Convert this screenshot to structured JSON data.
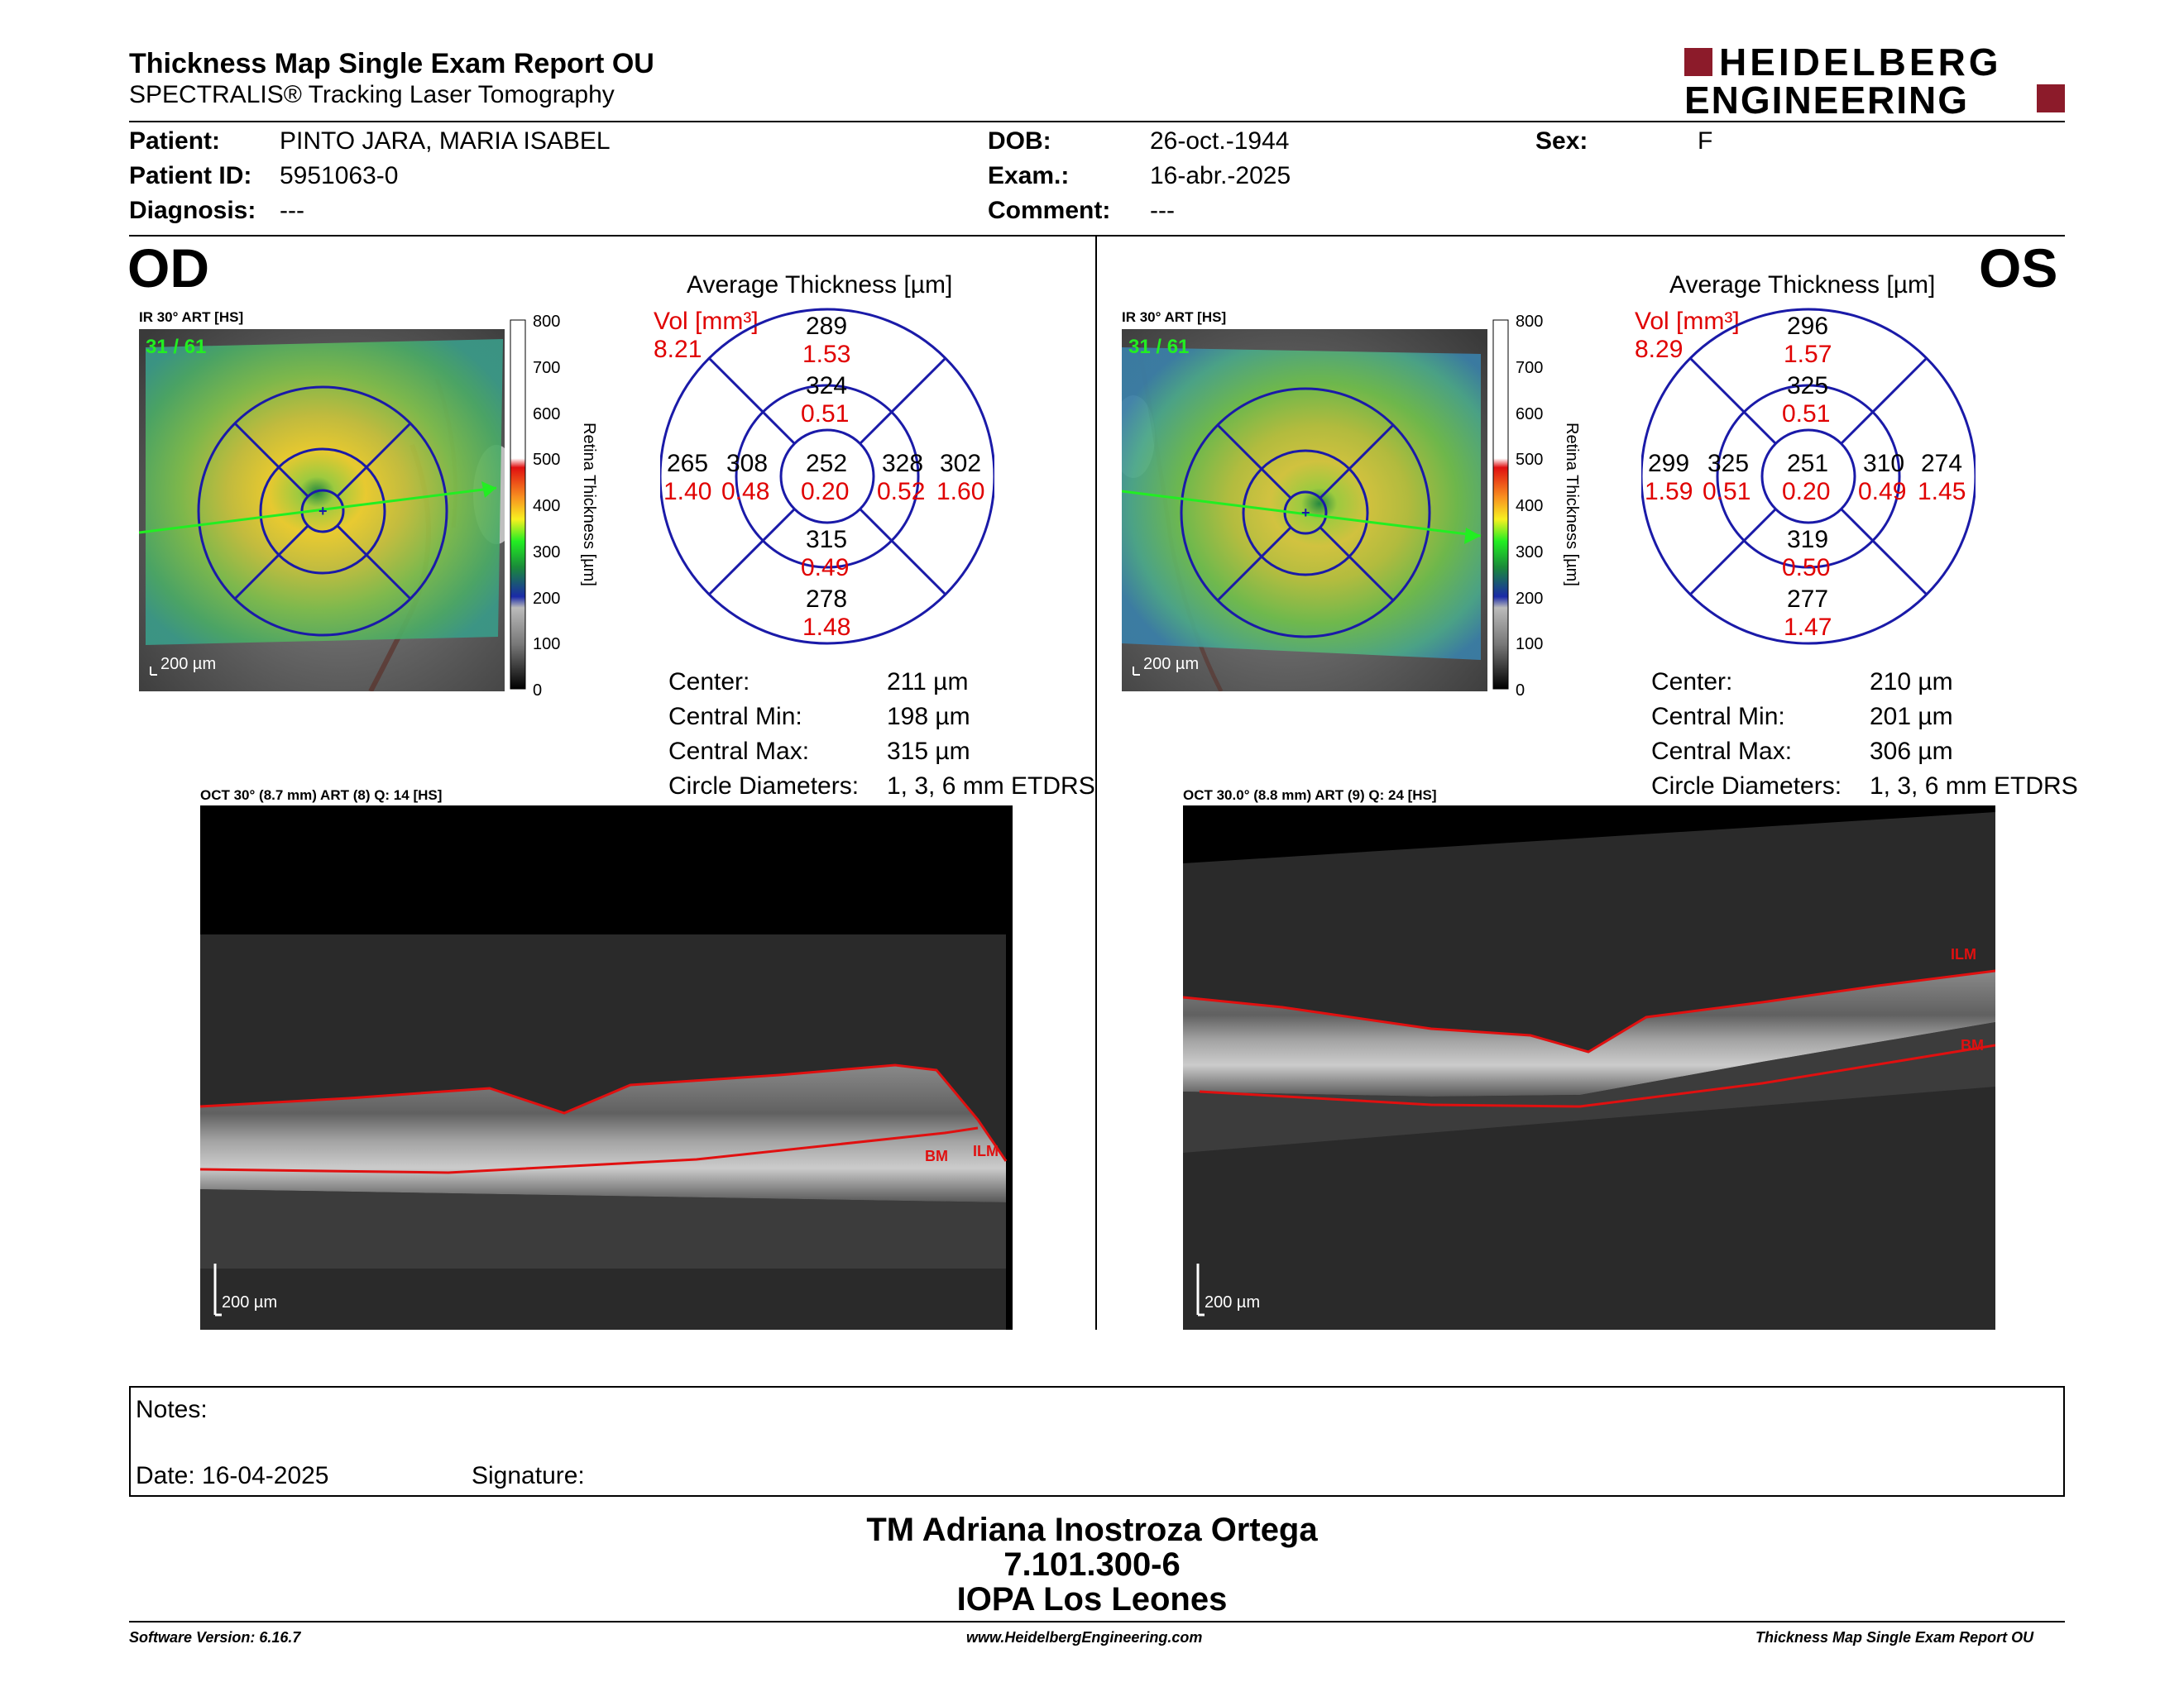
{
  "header": {
    "title": "Thickness Map Single Exam Report OU",
    "subtitle": "SPECTRALIS® Tracking Laser Tomography",
    "logo_line1": "HEIDELBERG",
    "logo_line2": "ENGINEERING"
  },
  "patient": {
    "patient_label": "Patient:",
    "patient_value": "PINTO JARA, MARIA ISABEL",
    "id_label": "Patient ID:",
    "id_value": "5951063-0",
    "diagnosis_label": "Diagnosis:",
    "diagnosis_value": "---",
    "dob_label": "DOB:",
    "dob_value": "26-oct.-1944",
    "exam_label": "Exam.:",
    "exam_value": "16-abr.-2025",
    "comment_label": "Comment:",
    "comment_value": "---",
    "sex_label": "Sex:",
    "sex_value": "F"
  },
  "colors": {
    "accent_red": "#8c1b2a",
    "grid_blue": "#1a1aa8",
    "value_red": "#e00000",
    "seg_red": "#e01010",
    "scan_green": "#22ee22"
  },
  "colorbar": {
    "ticks": [
      "800",
      "700",
      "600",
      "500",
      "400",
      "300",
      "200",
      "100",
      "0"
    ],
    "axis_label": "Retina Thickness [µm]"
  },
  "od": {
    "eye_label": "OD",
    "ir_label": "IR 30° ART [HS]",
    "frame": "31 / 61",
    "scale": "200 µm",
    "avg_title": "Average Thickness [µm]",
    "vol_label": "Vol [mm³]",
    "vol_value": "8.21",
    "sectors": {
      "outer_sup": "289",
      "outer_sup_vol": "1.53",
      "inner_sup": "324",
      "inner_sup_vol": "0.51",
      "outer_left": "265",
      "outer_left_vol": "1.40",
      "inner_left": "308",
      "inner_left_vol": "0.48",
      "center": "252",
      "center_vol": "0.20",
      "inner_right": "328",
      "inner_right_vol": "0.52",
      "outer_right": "302",
      "outer_right_vol": "1.60",
      "inner_inf": "315",
      "inner_inf_vol": "0.49",
      "outer_inf": "278",
      "outer_inf_vol": "1.48"
    },
    "stats": {
      "center_label": "Center:",
      "center_value": "211 µm",
      "min_label": "Central Min:",
      "min_value": "198 µm",
      "max_label": "Central Max:",
      "max_value": "315 µm",
      "diam_label": "Circle Diameters:",
      "diam_value": "1, 3, 6 mm ETDRS"
    },
    "oct_label": "OCT 30° (8.7 mm) ART (8) Q: 14 [HS]",
    "oct_scale": "200 µm",
    "ilm": "ILM",
    "bm": "BM"
  },
  "os": {
    "eye_label": "OS",
    "ir_label": "IR 30° ART [HS]",
    "frame": "31 / 61",
    "scale": "200 µm",
    "avg_title": "Average Thickness [µm]",
    "vol_label": "Vol [mm³]",
    "vol_value": "8.29",
    "sectors": {
      "outer_sup": "296",
      "outer_sup_vol": "1.57",
      "inner_sup": "325",
      "inner_sup_vol": "0.51",
      "outer_left": "299",
      "outer_left_vol": "1.59",
      "inner_left": "325",
      "inner_left_vol": "0.51",
      "center": "251",
      "center_vol": "0.20",
      "inner_right": "310",
      "inner_right_vol": "0.49",
      "outer_right": "274",
      "outer_right_vol": "1.45",
      "inner_inf": "319",
      "inner_inf_vol": "0.50",
      "outer_inf": "277",
      "outer_inf_vol": "1.47"
    },
    "stats": {
      "center_label": "Center:",
      "center_value": "210 µm",
      "min_label": "Central Min:",
      "min_value": "201 µm",
      "max_label": "Central Max:",
      "max_value": "306 µm",
      "diam_label": "Circle Diameters:",
      "diam_value": "1, 3, 6 mm ETDRS"
    },
    "oct_label": "OCT 30.0° (8.8 mm) ART (9) Q: 24 [HS]",
    "oct_scale": "200 µm",
    "ilm": "ILM",
    "bm": "BM"
  },
  "notes": {
    "notes_label": "Notes:",
    "date_label": "Date: 16-04-2025",
    "signature_label": "Signature:"
  },
  "signature": {
    "name": "TM Adriana Inostroza Ortega",
    "id": "7.101.300-6",
    "org": "IOPA Los Leones"
  },
  "footer": {
    "version": "Software Version: 6.16.7",
    "website": "www.HeidelbergEngineering.com",
    "report": "Thickness Map Single Exam Report OU"
  }
}
